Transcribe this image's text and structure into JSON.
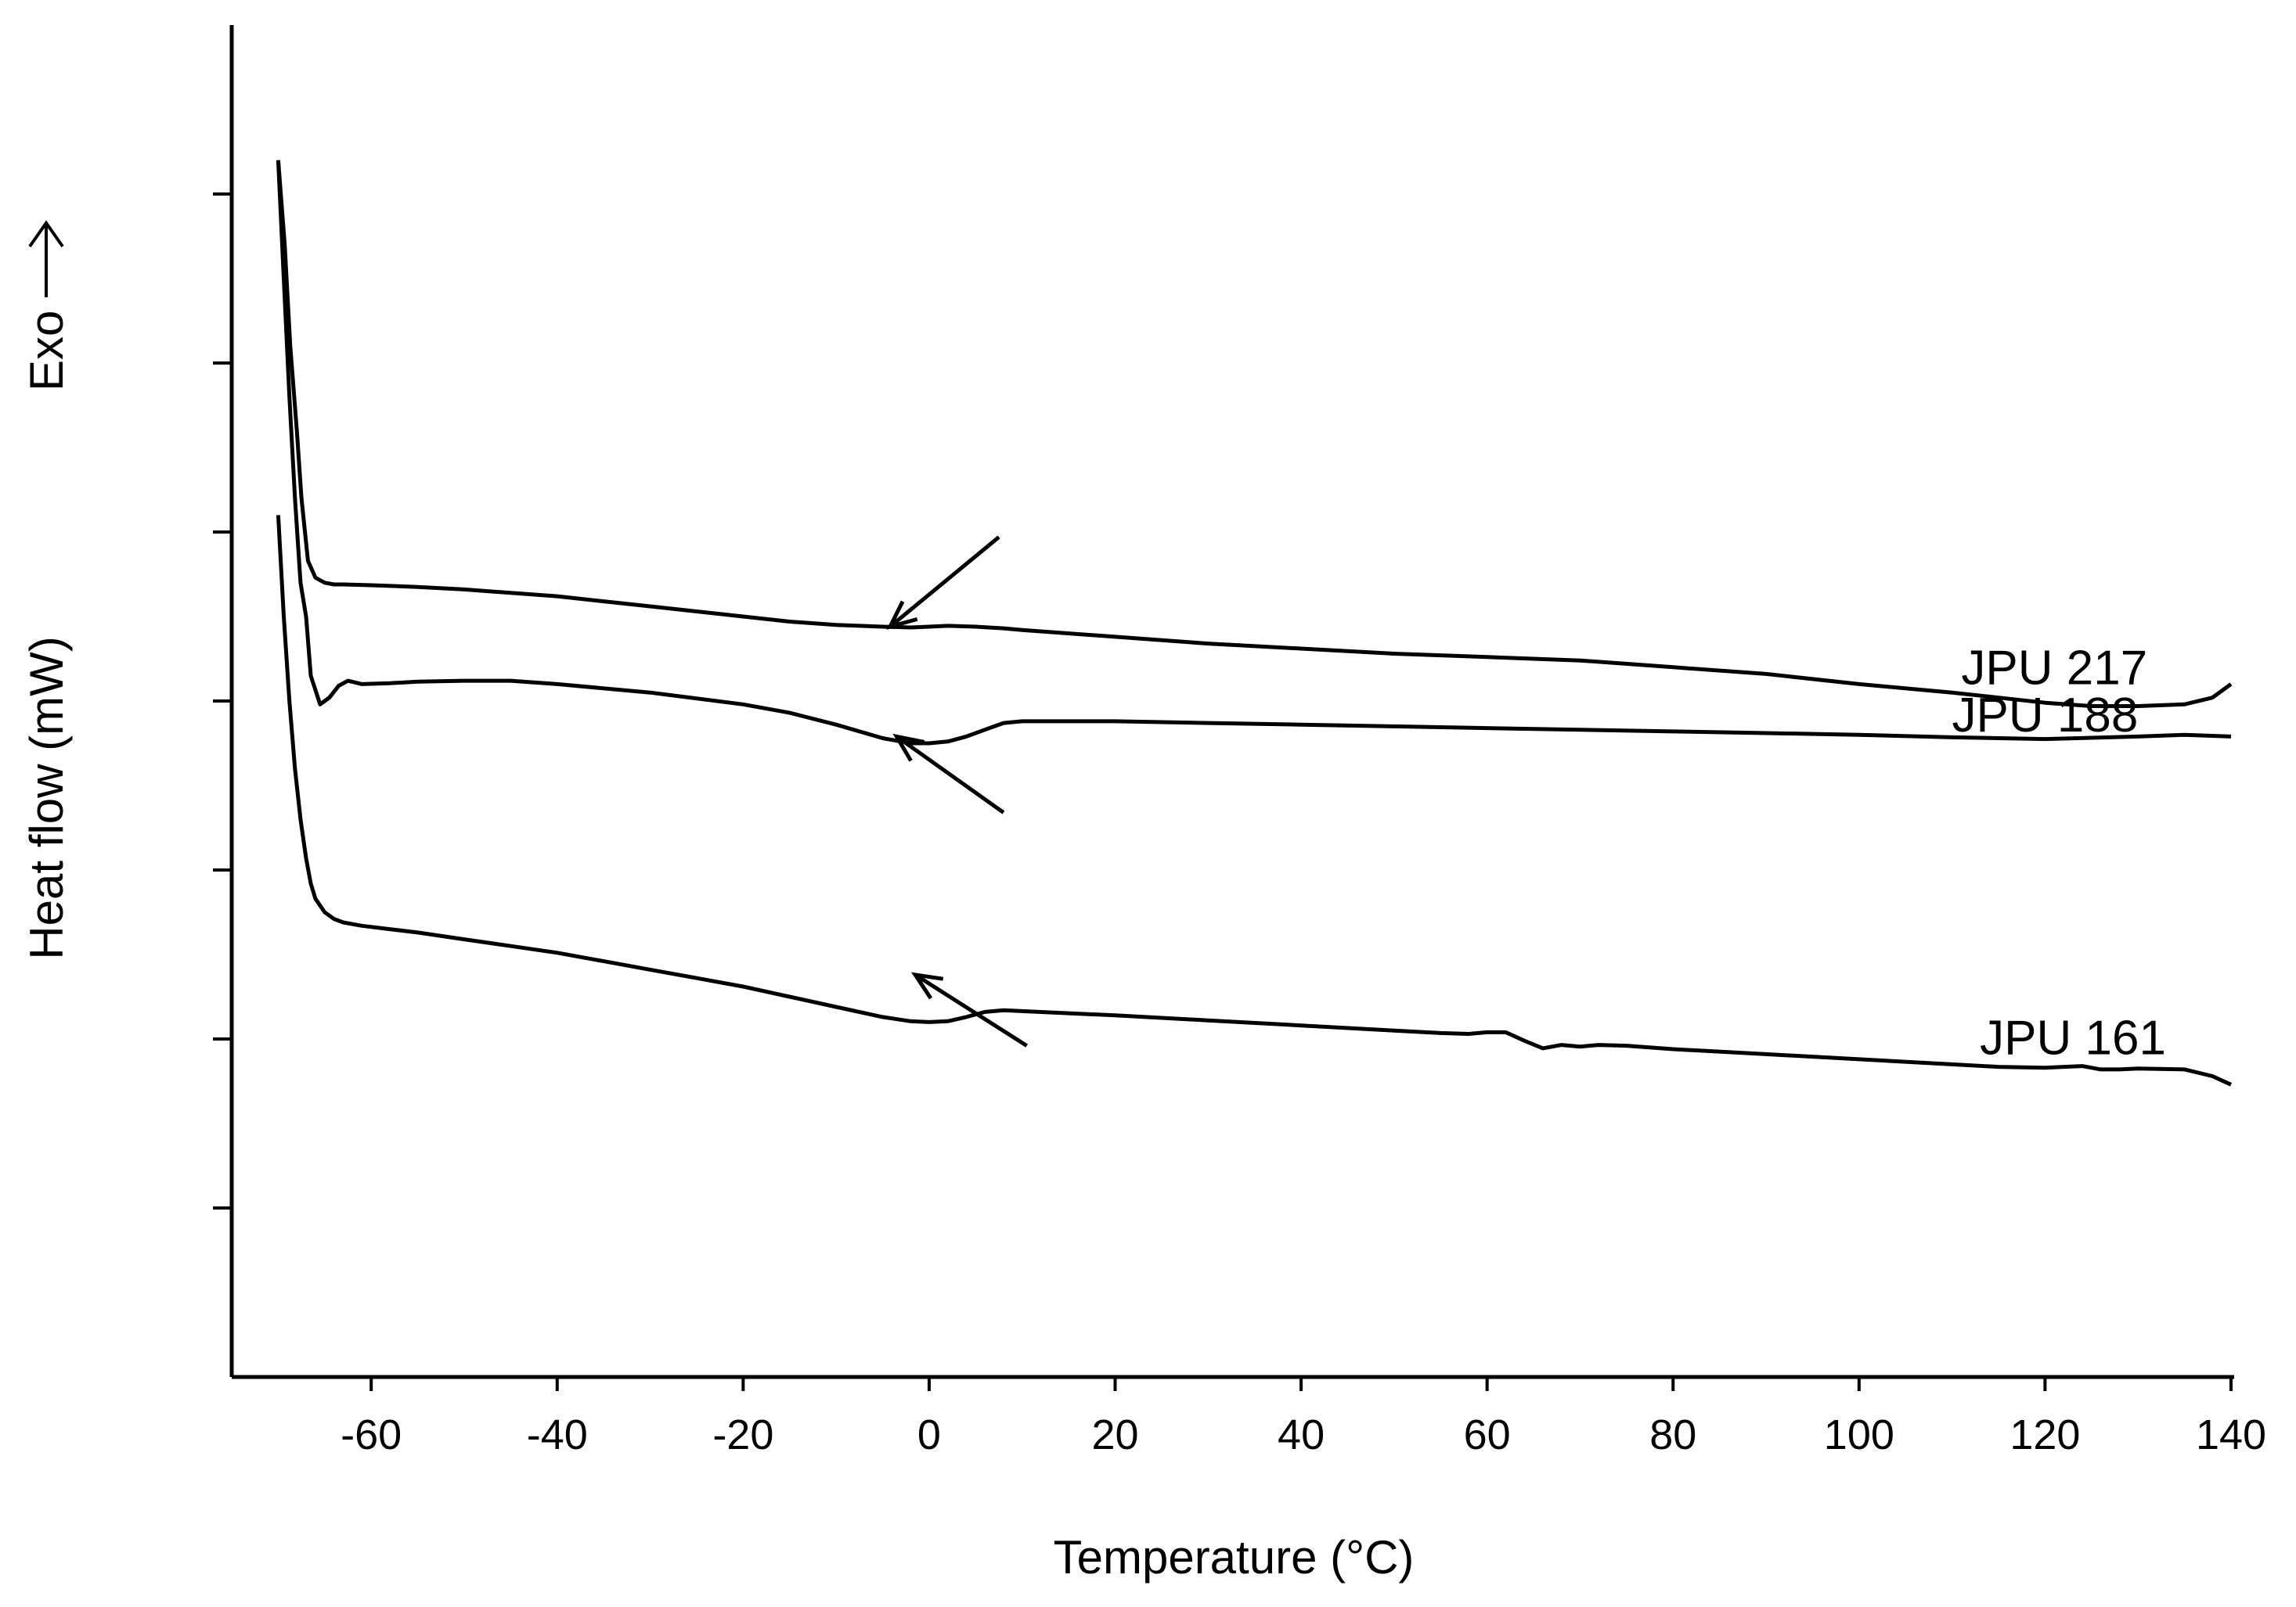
{
  "chart_data": {
    "type": "line",
    "title": "",
    "xlabel": "Temperature (°C)",
    "ylabel": "Heat flow (mW)",
    "ylabel_direction": "Exo",
    "xlim": [
      -75,
      140
    ],
    "ylim": [
      0,
      8
    ],
    "x_ticks": [
      -60,
      -40,
      -20,
      0,
      20,
      40,
      60,
      80,
      100,
      120,
      140
    ],
    "x_tick_labels": [
      "-60",
      "-40",
      "-20",
      "0",
      "20",
      "40",
      "60",
      "80",
      "100",
      "120",
      "140"
    ],
    "y_ticks": [
      1,
      2,
      3,
      4,
      5,
      6,
      7
    ],
    "y_tick_labels_shown": false,
    "grid": false,
    "series": [
      {
        "name": "JPU 217",
        "x": [
          -70,
          -69.3,
          -68.7,
          -68,
          -67.5,
          -66.8,
          -66,
          -65,
          -64,
          -63,
          -60,
          -55,
          -50,
          -45,
          -40,
          -35,
          -30,
          -25,
          -20,
          -15,
          -10,
          -5,
          -2,
          0,
          2,
          5,
          8,
          10,
          20,
          30,
          40,
          50,
          60,
          70,
          80,
          90,
          100,
          110,
          115,
          120,
          125,
          130,
          135,
          138,
          140
        ],
        "values": [
          7.2,
          6.7,
          6.1,
          5.6,
          5.2,
          4.83,
          4.73,
          4.7,
          4.69,
          4.69,
          4.685,
          4.675,
          4.66,
          4.64,
          4.62,
          4.59,
          4.56,
          4.53,
          4.5,
          4.47,
          4.45,
          4.44,
          4.435,
          4.44,
          4.445,
          4.44,
          4.43,
          4.42,
          4.38,
          4.34,
          4.31,
          4.28,
          4.26,
          4.24,
          4.2,
          4.16,
          4.1,
          4.05,
          4.02,
          3.99,
          3.97,
          3.97,
          3.98,
          4.02,
          4.1
        ]
      },
      {
        "name": "JPU 188",
        "x": [
          -70,
          -69.4,
          -68.8,
          -68.2,
          -67.6,
          -67,
          -66.5,
          -65.5,
          -64.5,
          -63.5,
          -62.5,
          -61,
          -58,
          -55,
          -50,
          -45,
          -40,
          -30,
          -20,
          -15,
          -10,
          -5,
          -2,
          0,
          2,
          4,
          6,
          8,
          10,
          20,
          30,
          40,
          50,
          60,
          70,
          80,
          90,
          100,
          110,
          120,
          130,
          135,
          140
        ],
        "values": [
          7.2,
          6.5,
          5.8,
          5.2,
          4.7,
          4.5,
          4.15,
          3.98,
          4.02,
          4.09,
          4.12,
          4.1,
          4.105,
          4.115,
          4.12,
          4.12,
          4.1,
          4.05,
          3.98,
          3.93,
          3.86,
          3.78,
          3.75,
          3.75,
          3.76,
          3.79,
          3.83,
          3.87,
          3.88,
          3.88,
          3.87,
          3.86,
          3.85,
          3.84,
          3.83,
          3.82,
          3.81,
          3.8,
          3.785,
          3.775,
          3.79,
          3.8,
          3.79
        ]
      },
      {
        "name": "JPU 161",
        "x": [
          -70,
          -69.4,
          -68.8,
          -68.2,
          -67.6,
          -67,
          -66.5,
          -66,
          -65,
          -64,
          -63,
          -61,
          -58,
          -55,
          -50,
          -45,
          -40,
          -35,
          -30,
          -25,
          -20,
          -15,
          -10,
          -5,
          -2,
          0,
          2,
          4,
          6,
          8,
          10,
          20,
          30,
          40,
          50,
          55,
          58,
          60,
          62,
          64,
          66,
          68,
          70,
          72,
          75,
          80,
          90,
          100,
          110,
          115,
          120,
          122,
          124,
          126,
          128,
          130,
          135,
          138,
          140
        ],
        "values": [
          5.1,
          4.5,
          4.0,
          3.6,
          3.3,
          3.07,
          2.92,
          2.83,
          2.75,
          2.71,
          2.69,
          2.67,
          2.65,
          2.63,
          2.59,
          2.55,
          2.51,
          2.46,
          2.41,
          2.36,
          2.31,
          2.25,
          2.19,
          2.13,
          2.105,
          2.1,
          2.105,
          2.13,
          2.16,
          2.17,
          2.165,
          2.14,
          2.11,
          2.08,
          2.05,
          2.035,
          2.03,
          2.04,
          2.04,
          1.99,
          1.945,
          1.965,
          1.955,
          1.965,
          1.96,
          1.94,
          1.91,
          1.88,
          1.85,
          1.835,
          1.83,
          1.835,
          1.84,
          1.82,
          1.82,
          1.825,
          1.82,
          1.78,
          1.73
        ]
      }
    ],
    "annotations": [
      {
        "type": "arrow",
        "from": [
          7.5,
          4.97
        ],
        "to": [
          -4.2,
          4.44
        ],
        "points_to": "JPU 217"
      },
      {
        "type": "arrow",
        "from": [
          8,
          3.34
        ],
        "to": [
          -3.5,
          3.79
        ],
        "points_to": "JPU 188"
      },
      {
        "type": "arrow",
        "from": [
          10.5,
          1.96
        ],
        "to": [
          -1.5,
          2.38
        ],
        "points_to": "JPU 161"
      }
    ]
  }
}
